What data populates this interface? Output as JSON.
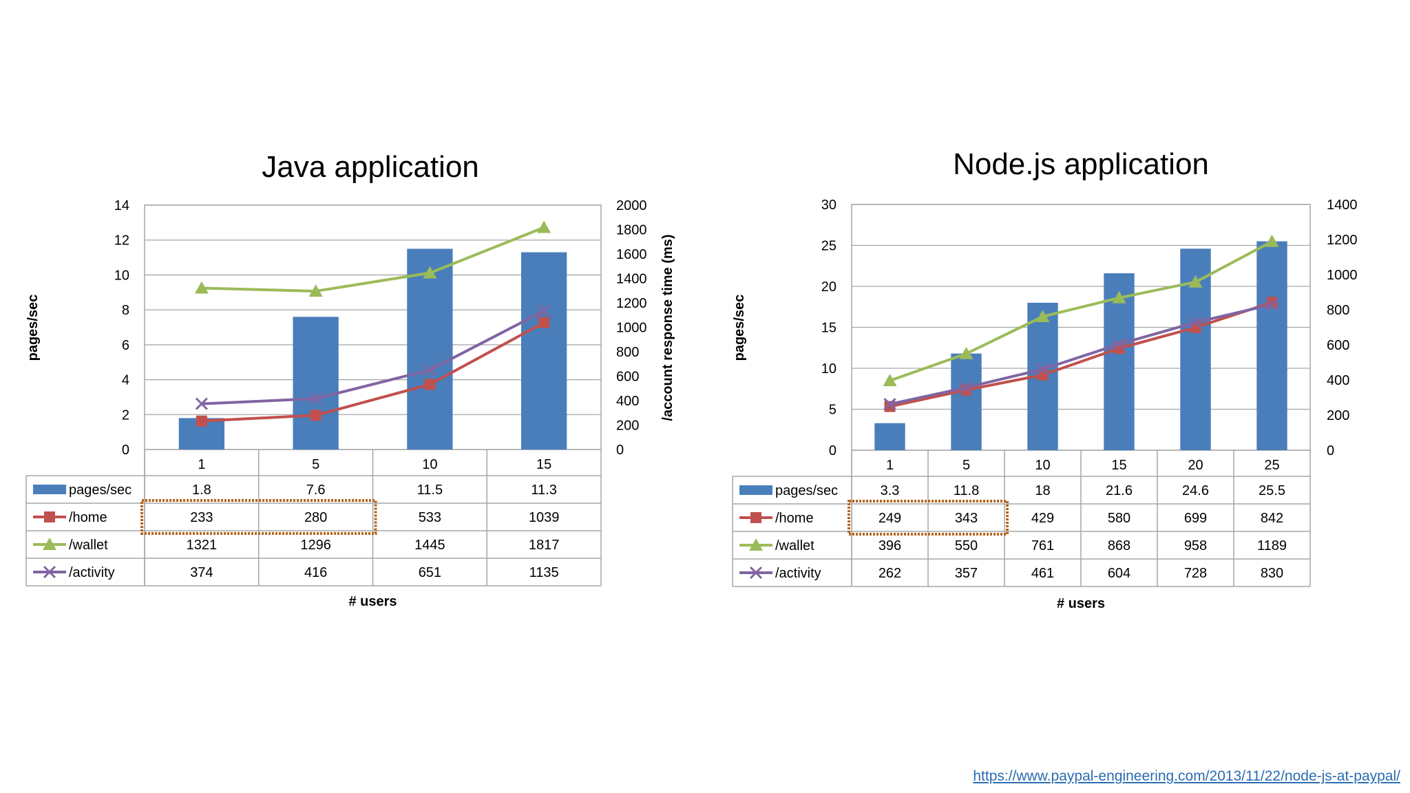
{
  "chart_data": [
    {
      "type": "bar+line",
      "title": "Java application",
      "xlabel": "# users",
      "ylabel": "pages/sec",
      "ylabel_right": "/account  response time (ms)",
      "categories": [
        "1",
        "5",
        "10",
        "15"
      ],
      "ylim": [
        0,
        14
      ],
      "yticks": [
        0,
        2,
        4,
        6,
        8,
        10,
        12,
        14
      ],
      "ylim_right": [
        0,
        2000
      ],
      "yticks_right": [
        0,
        200,
        400,
        600,
        800,
        1000,
        1200,
        1400,
        1600,
        1800,
        2000
      ],
      "grid": true,
      "series": [
        {
          "name": "pages/sec",
          "kind": "bar",
          "axis": "left",
          "color": "#4a7ebb",
          "values": [
            1.8,
            7.6,
            11.5,
            11.3
          ],
          "labels": [
            "1.8",
            "7.6",
            "11.5",
            "11.3"
          ]
        },
        {
          "name": "/home",
          "kind": "line",
          "axis": "right",
          "marker": "square",
          "color": "#c0504d",
          "values": [
            233,
            280,
            533,
            1039
          ]
        },
        {
          "name": "/wallet",
          "kind": "line",
          "axis": "right",
          "marker": "triangle",
          "color": "#9bbb59",
          "values": [
            1321,
            1296,
            1445,
            1817
          ]
        },
        {
          "name": "/activity",
          "kind": "line",
          "axis": "right",
          "marker": "x",
          "color": "#8064a2",
          "values": [
            374,
            416,
            651,
            1135
          ]
        }
      ],
      "highlight": {
        "row": "/home",
        "columns": [
          0,
          1
        ],
        "color": "#b5651d"
      }
    },
    {
      "type": "bar+line",
      "title": "Node.js application",
      "xlabel": "# users",
      "ylabel": "pages/sec",
      "ylabel_right": "",
      "categories": [
        "1",
        "5",
        "10",
        "15",
        "20",
        "25"
      ],
      "ylim": [
        0,
        30
      ],
      "yticks": [
        0,
        5,
        10,
        15,
        20,
        25,
        30
      ],
      "ylim_right": [
        0,
        1400
      ],
      "yticks_right": [
        0,
        200,
        400,
        600,
        800,
        1000,
        1200,
        1400
      ],
      "grid": true,
      "series": [
        {
          "name": "pages/sec",
          "kind": "bar",
          "axis": "left",
          "color": "#4a7ebb",
          "values": [
            3.3,
            11.8,
            18,
            21.6,
            24.6,
            25.5
          ],
          "labels": [
            "3.3",
            "11.8",
            "18",
            "21.6",
            "24.6",
            "25.5"
          ]
        },
        {
          "name": "/home",
          "kind": "line",
          "axis": "right",
          "marker": "square",
          "color": "#c0504d",
          "values": [
            249,
            343,
            429,
            580,
            699,
            842
          ]
        },
        {
          "name": "/wallet",
          "kind": "line",
          "axis": "right",
          "marker": "triangle",
          "color": "#9bbb59",
          "values": [
            396,
            550,
            761,
            868,
            958,
            1189
          ]
        },
        {
          "name": "/activity",
          "kind": "line",
          "axis": "right",
          "marker": "x",
          "color": "#8064a2",
          "values": [
            262,
            357,
            461,
            604,
            728,
            830
          ]
        }
      ],
      "highlight": {
        "row": "/home",
        "columns": [
          0,
          1
        ],
        "color": "#b5651d"
      }
    }
  ],
  "source": {
    "link_text": "https://www.paypal-engineering.com/2013/11/22/node-js-at-paypal/"
  }
}
